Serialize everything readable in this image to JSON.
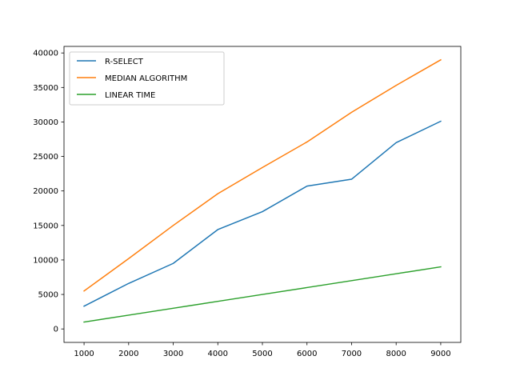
{
  "chart_data": {
    "type": "line",
    "title": "",
    "xlabel": "",
    "ylabel": "",
    "x": [
      1000,
      2000,
      3000,
      4000,
      5000,
      6000,
      7000,
      8000,
      9000
    ],
    "xlim": [
      550,
      9450
    ],
    "ylim": [
      -1950,
      40950
    ],
    "xticks": [
      1000,
      2000,
      3000,
      4000,
      5000,
      6000,
      7000,
      8000,
      9000
    ],
    "yticks": [
      0,
      5000,
      10000,
      15000,
      20000,
      25000,
      30000,
      35000,
      40000
    ],
    "grid": false,
    "legend_position": "top-left",
    "series": [
      {
        "name": "R-SELECT",
        "color": "#1f77b4",
        "values": [
          3300,
          6600,
          9500,
          14400,
          17000,
          20700,
          21700,
          27000,
          30100
        ]
      },
      {
        "name": "MEDIAN ALGORITHM",
        "color": "#ff7f0e",
        "values": [
          5500,
          10200,
          15000,
          19600,
          23400,
          27100,
          31400,
          35300,
          39000
        ]
      },
      {
        "name": "LINEAR TIME",
        "color": "#2ca02c",
        "values": [
          1000,
          2000,
          3000,
          4000,
          5000,
          6000,
          7000,
          8000,
          9000
        ]
      }
    ]
  }
}
